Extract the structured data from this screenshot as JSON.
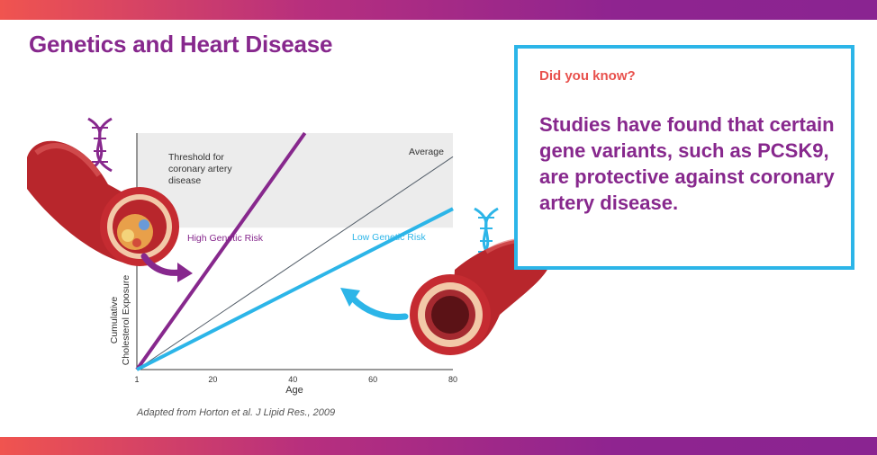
{
  "slide": {
    "title": "Genetics and Heart Disease",
    "colors": {
      "purple": "#87288d",
      "blue": "#2cb5e8",
      "coral": "#e8514d"
    }
  },
  "info_box": {
    "kicker": "Did you know?",
    "fact": "Studies have found that certain gene variants, such as PCSK9, are protective against coronary artery disease."
  },
  "chart_data": {
    "type": "line",
    "title": "",
    "xlabel": "Age",
    "ylabel_line1": "Cumulative",
    "ylabel_line2": "Cholesterol Exposure",
    "x_ticks": [
      "1",
      "20",
      "40",
      "60",
      "80"
    ],
    "xlim": [
      1,
      80
    ],
    "ylim": [
      0,
      100
    ],
    "threshold_band": {
      "label_line1": "Threshold for",
      "label_line2": "coronary artery",
      "label_line3": "disease",
      "y_range": [
        60,
        100
      ]
    },
    "series": [
      {
        "name": "High Genetic Risk",
        "x": [
          1,
          43
        ],
        "y": [
          0,
          100
        ],
        "color": "#87288d"
      },
      {
        "name": "Average",
        "x": [
          1,
          80
        ],
        "y": [
          0,
          90
        ],
        "color": "#555f6a"
      },
      {
        "name": "Low Genetic Risk",
        "x": [
          1,
          80
        ],
        "y": [
          0,
          68
        ],
        "color": "#2cb5e8"
      }
    ],
    "citation": "Adapted from Horton et al. J Lipid Res., 2009"
  }
}
